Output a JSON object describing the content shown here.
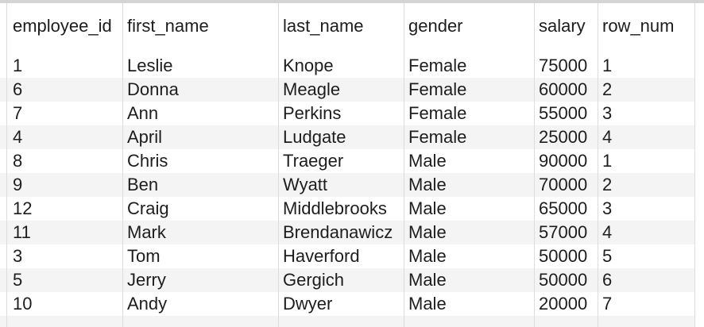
{
  "table": {
    "columns": [
      "employee_id",
      "first_name",
      "last_name",
      "gender",
      "salary",
      "row_num"
    ],
    "rows": [
      [
        "1",
        "Leslie",
        "Knope",
        "Female",
        "75000",
        "1"
      ],
      [
        "6",
        "Donna",
        "Meagle",
        "Female",
        "60000",
        "2"
      ],
      [
        "7",
        "Ann",
        "Perkins",
        "Female",
        "55000",
        "3"
      ],
      [
        "4",
        "April",
        "Ludgate",
        "Female",
        "25000",
        "4"
      ],
      [
        "8",
        "Chris",
        "Traeger",
        "Male",
        "90000",
        "1"
      ],
      [
        "9",
        "Ben",
        "Wyatt",
        "Male",
        "70000",
        "2"
      ],
      [
        "12",
        "Craig",
        "Middlebrooks",
        "Male",
        "65000",
        "3"
      ],
      [
        "11",
        "Mark",
        "Brendanawicz",
        "Male",
        "57000",
        "4"
      ],
      [
        "3",
        "Tom",
        "Haverford",
        "Male",
        "50000",
        "5"
      ],
      [
        "5",
        "Jerry",
        "Gergich",
        "Male",
        "50000",
        "6"
      ],
      [
        "10",
        "Andy",
        "Dwyer",
        "Male",
        "20000",
        "7"
      ]
    ]
  }
}
